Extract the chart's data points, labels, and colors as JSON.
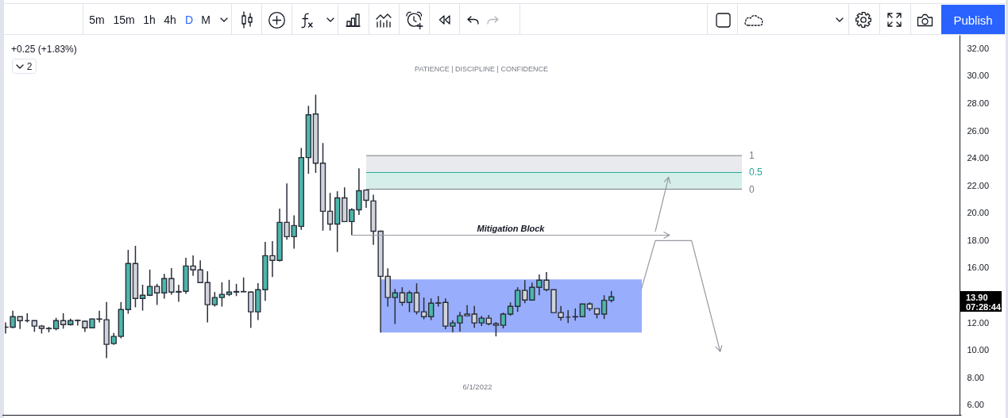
{
  "chart_data": {
    "type": "candlestick",
    "subtitle": "PATIENCE | DISCIPLINE | CONFIDENCE",
    "categories": [
      null,
      null,
      null,
      null,
      null,
      null,
      null,
      null,
      null,
      null,
      null,
      null,
      null,
      null,
      null,
      null,
      null,
      null,
      null,
      null,
      null,
      null,
      null,
      null,
      null,
      null,
      null,
      null,
      null,
      null,
      null,
      null,
      null,
      null,
      null,
      null,
      null,
      null,
      null,
      null,
      null,
      null,
      null,
      null,
      null,
      null,
      null,
      null,
      null,
      null,
      null,
      null,
      null,
      null,
      null,
      null,
      null,
      null,
      null,
      null,
      null,
      null,
      null,
      null,
      null,
      null,
      null,
      null,
      null,
      null,
      null,
      null,
      null,
      null,
      null,
      null,
      null,
      null,
      null,
      null,
      null,
      null,
      null,
      null,
      null,
      null,
      null,
      null,
      null,
      null,
      null,
      null,
      null,
      null,
      null,
      null,
      null,
      null,
      null,
      null,
      null,
      null,
      null,
      null,
      null,
      null,
      null,
      null,
      null,
      null,
      null,
      null,
      null,
      null,
      null,
      null,
      null,
      null,
      null,
      null,
      null,
      null,
      null,
      null,
      null,
      null,
      null,
      null,
      null,
      null,
      null,
      null,
      null
    ],
    "ohlc": [
      [
        11.7,
        12.04,
        11.23,
        11.69
      ],
      [
        11.69,
        12.89,
        11.62,
        12.46
      ],
      [
        12.46,
        12.46,
        11.56,
        12.17
      ],
      [
        12.17,
        12.71,
        12.04,
        12.17
      ],
      [
        12.17,
        12.2,
        11.35,
        11.77
      ],
      [
        11.77,
        11.85,
        11.23,
        11.6
      ],
      [
        11.6,
        11.71,
        11.31,
        11.58
      ],
      [
        11.58,
        12.37,
        11.46,
        12.17
      ],
      [
        12.17,
        12.71,
        11.58,
        11.88
      ],
      [
        11.88,
        12.31,
        11.81,
        12.17
      ],
      [
        12.17,
        12.25,
        11.81,
        12.19
      ],
      [
        12.12,
        12.17,
        11.35,
        11.65
      ],
      [
        11.65,
        12.33,
        11.65,
        12.29
      ],
      [
        12.29,
        12.89,
        12.04,
        12.27
      ],
      [
        12.23,
        13.52,
        9.44,
        10.44
      ],
      [
        10.5,
        11.27,
        10.4,
        11.02
      ],
      [
        11.02,
        13.52,
        10.88,
        12.98
      ],
      [
        12.98,
        17.33,
        12.67,
        16.33
      ],
      [
        16.33,
        17.62,
        13.14,
        13.79
      ],
      [
        13.79,
        14.79,
        12.9,
        14.02
      ],
      [
        14.02,
        15.89,
        13.96,
        14.66
      ],
      [
        14.66,
        14.85,
        13.31,
        14.19
      ],
      [
        14.19,
        15.58,
        13.77,
        15.23
      ],
      [
        15.23,
        16.0,
        14.06,
        14.25
      ],
      [
        14.25,
        14.79,
        13.54,
        14.29
      ],
      [
        14.31,
        16.75,
        14.12,
        16.15
      ],
      [
        16.15,
        16.92,
        15.44,
        15.87
      ],
      [
        15.87,
        16.56,
        14.94,
        14.94
      ],
      [
        14.94,
        15.77,
        12.04,
        13.33
      ],
      [
        13.33,
        14.25,
        13.19,
        13.85
      ],
      [
        13.85,
        14.96,
        13.19,
        14.08
      ],
      [
        14.08,
        15.14,
        13.96,
        14.25
      ],
      [
        14.25,
        14.85,
        13.96,
        14.29
      ],
      [
        14.29,
        15.31,
        14.25,
        14.27
      ],
      [
        14.25,
        14.31,
        11.64,
        12.81
      ],
      [
        12.81,
        14.9,
        12.21,
        14.42
      ],
      [
        14.42,
        17.9,
        13.62,
        16.9
      ],
      [
        16.9,
        17.96,
        15.35,
        16.56
      ],
      [
        16.56,
        20.33,
        16.48,
        19.33
      ],
      [
        19.33,
        22.17,
        18.06,
        18.29
      ],
      [
        18.29,
        19.85,
        17.42,
        19.1
      ],
      [
        19.04,
        24.75,
        18.79,
        24.06
      ],
      [
        24.06,
        27.83,
        22.88,
        27.17
      ],
      [
        27.23,
        28.64,
        22.94,
        23.65
      ],
      [
        23.65,
        25.12,
        18.73,
        20.14
      ],
      [
        20.14,
        21.48,
        18.73,
        19.21
      ],
      [
        19.21,
        21.6,
        17.17,
        21.12
      ],
      [
        21.12,
        21.88,
        19.39,
        19.39
      ],
      [
        19.39,
        20.37,
        18.4,
        20.25
      ],
      [
        20.25,
        23.27,
        19.88,
        21.64
      ],
      [
        21.69,
        21.69,
        20.4,
        20.94
      ],
      [
        20.89,
        21.35,
        17.69,
        18.69
      ],
      [
        18.69,
        18.73,
        11.3,
        15.4
      ],
      [
        15.4,
        15.98,
        13.19,
        13.85
      ],
      [
        13.85,
        14.48,
        11.92,
        14.19
      ],
      [
        14.19,
        14.6,
        13.25,
        13.5
      ],
      [
        13.5,
        14.35,
        12.79,
        14.19
      ],
      [
        14.19,
        14.89,
        12.62,
        12.81
      ],
      [
        12.81,
        13.85,
        12.27,
        12.46
      ],
      [
        12.46,
        13.79,
        12.21,
        13.44
      ],
      [
        13.44,
        13.96,
        13.19,
        13.46
      ],
      [
        13.5,
        13.79,
        11.54,
        11.77
      ],
      [
        11.77,
        12.19,
        11.31,
        12.0
      ],
      [
        12.0,
        12.81,
        11.37,
        12.52
      ],
      [
        12.64,
        13.29,
        12.52,
        12.52
      ],
      [
        12.64,
        13.23,
        11.65,
        12.0
      ],
      [
        12.0,
        12.52,
        11.77,
        12.35
      ],
      [
        12.35,
        12.58,
        11.83,
        11.94
      ],
      [
        11.94,
        12.06,
        11.02,
        11.83
      ],
      [
        11.83,
        12.75,
        11.6,
        12.64
      ],
      [
        12.64,
        13.5,
        12.52,
        13.21
      ],
      [
        13.21,
        14.6,
        12.81,
        14.37
      ],
      [
        14.37,
        15.12,
        13.44,
        13.67
      ],
      [
        13.67,
        14.94,
        13.62,
        14.6
      ],
      [
        14.6,
        15.54,
        14.02,
        15.12
      ],
      [
        15.12,
        15.71,
        14.31,
        14.42
      ],
      [
        14.42,
        14.42,
        12.75,
        12.75
      ],
      [
        12.75,
        13.23,
        12.17,
        12.4
      ],
      [
        12.42,
        12.94,
        12.0,
        12.42
      ],
      [
        12.44,
        13.06,
        12.17,
        12.46
      ],
      [
        12.46,
        13.38,
        12.46,
        13.38
      ],
      [
        13.38,
        13.5,
        12.87,
        13.04
      ],
      [
        13.04,
        13.04,
        12.33,
        12.64
      ],
      [
        12.64,
        14.02,
        12.29,
        13.65
      ],
      [
        13.65,
        14.33,
        13.5,
        13.9
      ],
      null,
      null,
      null,
      null,
      null,
      null,
      null,
      null,
      null,
      null,
      null,
      null,
      null,
      null,
      null,
      null,
      null,
      null,
      null,
      null,
      null,
      null,
      null,
      null,
      null,
      null,
      null,
      null,
      null,
      null,
      null,
      null,
      null,
      null,
      null,
      null,
      null,
      null,
      null,
      null,
      null,
      null,
      null,
      null,
      null,
      null,
      null,
      null
    ],
    "colors": [
      "#2a2e39",
      "#4db6ac",
      "#d1d4dc",
      "#2a2e39",
      "#d1d4dc",
      "#d1d4dc",
      "#2a2e39",
      "#4db6ac",
      "#d1d4dc",
      "#4db6ac",
      "#2a2e39",
      "#d1d4dc",
      "#4db6ac",
      "#2a2e39",
      "#d1d4dc",
      "#4db6ac",
      "#4db6ac",
      "#4db6ac",
      "#d1d4dc",
      "#4db6ac",
      "#4db6ac",
      "#d1d4dc",
      "#4db6ac",
      "#d1d4dc",
      "#2a2e39",
      "#4db6ac",
      "#d1d4dc",
      "#d1d4dc",
      "#d1d4dc",
      "#4db6ac",
      "#4db6ac",
      "#4db6ac",
      "#2a2e39",
      "#2a2e39",
      "#d1d4dc",
      "#4db6ac",
      "#4db6ac",
      "#d1d4dc",
      "#4db6ac",
      "#d1d4dc",
      "#4db6ac",
      "#4db6ac",
      "#4db6ac",
      "#d1d4dc",
      "#d1d4dc",
      "#d1d4dc",
      "#4db6ac",
      "#d1d4dc",
      "#4db6ac",
      "#4db6ac",
      "#d1d4dc",
      "#d1d4dc",
      "#d1d4dc",
      "#d1d4dc",
      "#4db6ac",
      "#d1d4dc",
      "#4db6ac",
      "#d1d4dc",
      "#d1d4dc",
      "#4db6ac",
      "#2a2e39",
      "#d1d4dc",
      "#4db6ac",
      "#4db6ac",
      "#d1d4dc",
      "#d1d4dc",
      "#4db6ac",
      "#d1d4dc",
      "#d1d4dc",
      "#4db6ac",
      "#4db6ac",
      "#4db6ac",
      "#d1d4dc",
      "#4db6ac",
      "#4db6ac",
      "#d1d4dc",
      "#d1d4dc",
      "#d1d4dc",
      "#2a2e39",
      "#2a2e39",
      "#4db6ac",
      "#d1d4dc",
      "#d1d4dc",
      "#4db6ac",
      "#4db6ac",
      null,
      null,
      null,
      null,
      null,
      null,
      null,
      null,
      null,
      null,
      null,
      null,
      null,
      null,
      null,
      null,
      null,
      null,
      null,
      null,
      null,
      null,
      null,
      null,
      null,
      null,
      null,
      null,
      null,
      null,
      null,
      null,
      null,
      null,
      null,
      null,
      null,
      null,
      null,
      null,
      null,
      null,
      null,
      null,
      null,
      null,
      null,
      null
    ],
    "ylim": [
      5.3,
      33.0
    ],
    "yticks": [
      {
        "value": 6,
        "label": "6.00"
      },
      {
        "value": 8,
        "label": "8.00"
      },
      {
        "value": 10,
        "label": "10.00"
      },
      {
        "value": 12,
        "label": "12.00"
      },
      {
        "value": 16,
        "label": "16.00"
      },
      {
        "value": 18,
        "label": "18.00"
      },
      {
        "value": 20,
        "label": "20.00"
      },
      {
        "value": 22,
        "label": "22.00"
      },
      {
        "value": 24,
        "label": "24.00"
      },
      {
        "value": 26,
        "label": "26.00"
      },
      {
        "value": 28,
        "label": "28.00"
      },
      {
        "value": 30,
        "label": "30.00"
      },
      {
        "value": 32,
        "label": "32.00"
      }
    ],
    "tick_labels": "y",
    "bands": [
      {
        "axis": "y",
        "from": 22.97,
        "to": 24.2,
        "color": "#e9eaed"
      },
      {
        "axis": "y",
        "from": 21.75,
        "to": 22.97,
        "color": "#d5eeea"
      },
      {
        "axis": "y",
        "from": 11.3,
        "to": 15.17,
        "color": "#98adfc"
      }
    ],
    "ref_lines": [
      {
        "axis": "y",
        "value": 24.2,
        "color": "#787b86"
      },
      {
        "axis": "y",
        "value": 22.97,
        "color": "#26a69a"
      },
      {
        "axis": "y",
        "value": 21.75,
        "color": "#787b86"
      }
    ],
    "annotations": [
      "5m",
      "15m",
      "1h",
      "4h",
      "D",
      "M",
      "Publish",
      "+0.25 (+1.83%)",
      "2",
      "6/1/2022",
      "13.90",
      "07:28:44",
      "Mitigation Block",
      "1",
      "0.5",
      "0"
    ]
  }
}
